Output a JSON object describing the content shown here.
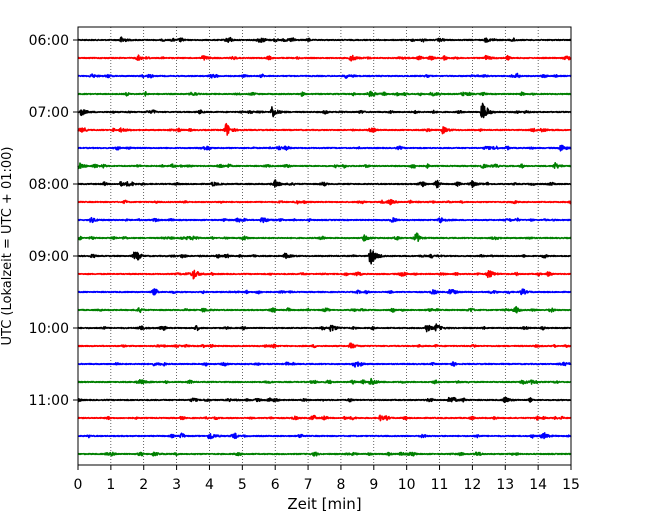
{
  "chart_data": {
    "type": "line",
    "title": "",
    "xlabel": "Zeit  [min]",
    "ylabel": "UTC (Lokalzeit = UTC + 01:00)",
    "xlim": [
      0,
      15
    ],
    "x_ticks": [
      0,
      1,
      2,
      3,
      4,
      5,
      6,
      7,
      8,
      9,
      10,
      11,
      12,
      13,
      14,
      15
    ],
    "y_ticks": [
      "06:00",
      "07:00",
      "08:00",
      "09:00",
      "10:00",
      "11:00"
    ],
    "grid": "vertical-dotted",
    "trace_interval_minutes": 15,
    "trace_colors": [
      "#000000",
      "#ff0000",
      "#0000ff",
      "#008000"
    ],
    "traces": [
      {
        "start": "06:00",
        "color": "#000000",
        "events": [
          {
            "t": 1.3,
            "a": 0.35
          },
          {
            "t": 12.4,
            "a": 0.3
          }
        ]
      },
      {
        "start": "06:15",
        "color": "#ff0000",
        "events": [
          {
            "t": 3.8,
            "a": 0.4
          },
          {
            "t": 8.3,
            "a": 0.5
          },
          {
            "t": 12.4,
            "a": 0.35
          }
        ]
      },
      {
        "start": "06:30",
        "color": "#0000ff",
        "events": [
          {
            "t": 0.4,
            "a": 0.3
          }
        ]
      },
      {
        "start": "06:45",
        "color": "#008000",
        "events": [
          {
            "t": 8.9,
            "a": 0.3
          }
        ]
      },
      {
        "start": "07:00",
        "color": "#000000",
        "events": [
          {
            "t": 0.1,
            "a": 0.5
          },
          {
            "t": 5.9,
            "a": 0.9
          },
          {
            "t": 12.3,
            "a": 1.3
          }
        ]
      },
      {
        "start": "07:15",
        "color": "#ff0000",
        "events": [
          {
            "t": 1.3,
            "a": 0.35
          },
          {
            "t": 4.5,
            "a": 1.1
          },
          {
            "t": 11.1,
            "a": 0.5
          },
          {
            "t": 14.1,
            "a": 0.3
          }
        ]
      },
      {
        "start": "07:30",
        "color": "#0000ff",
        "events": [
          {
            "t": 14.7,
            "a": 0.5
          }
        ]
      },
      {
        "start": "07:45",
        "color": "#008000",
        "events": [
          {
            "t": 12.3,
            "a": 0.3
          },
          {
            "t": 14.5,
            "a": 0.5
          }
        ]
      },
      {
        "start": "08:00",
        "color": "#000000",
        "events": [
          {
            "t": 1.3,
            "a": 0.3
          },
          {
            "t": 4.1,
            "a": 0.3
          },
          {
            "t": 6.0,
            "a": 0.45
          },
          {
            "t": 12.0,
            "a": 0.3
          }
        ]
      },
      {
        "start": "08:15",
        "color": "#ff0000",
        "events": [
          {
            "t": 9.5,
            "a": 0.3
          }
        ]
      },
      {
        "start": "08:30",
        "color": "#0000ff",
        "events": [
          {
            "t": 0.4,
            "a": 0.4
          },
          {
            "t": 5.6,
            "a": 0.5
          },
          {
            "t": 11.0,
            "a": 0.5
          }
        ]
      },
      {
        "start": "08:45",
        "color": "#008000",
        "events": [
          {
            "t": 8.7,
            "a": 0.4
          },
          {
            "t": 10.3,
            "a": 0.3
          }
        ]
      },
      {
        "start": "09:00",
        "color": "#000000",
        "events": [
          {
            "t": 1.7,
            "a": 0.4
          },
          {
            "t": 6.3,
            "a": 0.4
          },
          {
            "t": 8.9,
            "a": 1.3
          }
        ]
      },
      {
        "start": "09:15",
        "color": "#ff0000",
        "events": [
          {
            "t": 3.5,
            "a": 0.8
          },
          {
            "t": 12.5,
            "a": 0.6
          }
        ]
      },
      {
        "start": "09:30",
        "color": "#0000ff",
        "events": [
          {
            "t": 11.3,
            "a": 0.3
          },
          {
            "t": 13.5,
            "a": 0.3
          }
        ]
      },
      {
        "start": "09:45",
        "color": "#008000",
        "events": [
          {
            "t": 3.8,
            "a": 0.3
          }
        ]
      },
      {
        "start": "10:00",
        "color": "#000000",
        "events": [
          {
            "t": 1.9,
            "a": 0.3
          },
          {
            "t": 7.7,
            "a": 0.55
          },
          {
            "t": 10.6,
            "a": 0.6
          },
          {
            "t": 10.9,
            "a": 0.5
          }
        ]
      },
      {
        "start": "10:15",
        "color": "#ff0000",
        "events": [
          {
            "t": 8.3,
            "a": 0.3
          }
        ]
      },
      {
        "start": "10:30",
        "color": "#0000ff",
        "events": [
          {
            "t": 8.4,
            "a": 0.55
          },
          {
            "t": 14.8,
            "a": 0.3
          }
        ]
      },
      {
        "start": "10:45",
        "color": "#008000",
        "events": [
          {
            "t": 1.9,
            "a": 0.35
          },
          {
            "t": 8.9,
            "a": 0.6
          },
          {
            "t": 13.5,
            "a": 0.35
          }
        ]
      },
      {
        "start": "11:00",
        "color": "#000000",
        "events": [
          {
            "t": 11.3,
            "a": 0.5
          },
          {
            "t": 13.0,
            "a": 0.35
          }
        ]
      },
      {
        "start": "11:15",
        "color": "#ff0000",
        "events": [
          {
            "t": 9.2,
            "a": 0.4
          }
        ]
      },
      {
        "start": "11:30",
        "color": "#0000ff",
        "events": [
          {
            "t": 4.0,
            "a": 0.65
          },
          {
            "t": 14.2,
            "a": 0.3
          }
        ]
      },
      {
        "start": "11:45",
        "color": "#008000",
        "events": [
          {
            "t": 2.3,
            "a": 0.3
          }
        ]
      }
    ]
  }
}
